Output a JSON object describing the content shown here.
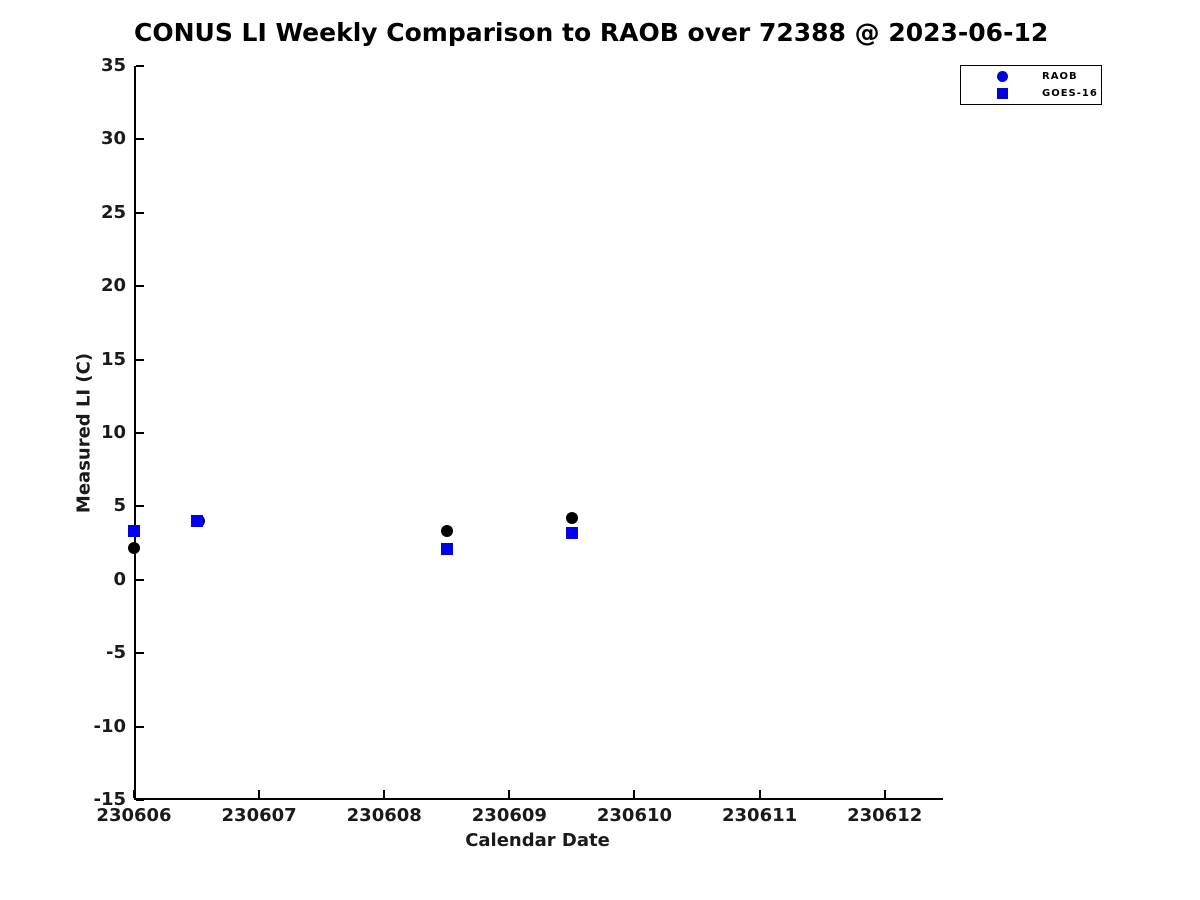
{
  "chart_data": {
    "type": "scatter",
    "title": "CONUS LI Weekly Comparison to RAOB over 72388 @ 2023-06-12",
    "xlabel": "Calendar Date",
    "ylabel": "Measured LI (C)",
    "xlim": [
      230606,
      230612.45
    ],
    "ylim": [
      -15,
      35
    ],
    "x_ticks": [
      230606,
      230607,
      230608,
      230609,
      230610,
      230611,
      230612
    ],
    "y_ticks": [
      -15,
      -10,
      -5,
      0,
      5,
      10,
      15,
      20,
      25,
      30,
      35
    ],
    "grid": false,
    "legend": {
      "position": "top-right",
      "entries": [
        {
          "label": "RAOB",
          "marker": "circle",
          "color": "#0000dd"
        },
        {
          "label": "GOES-16",
          "marker": "square",
          "color": "#0000dd"
        }
      ]
    },
    "series": [
      {
        "name": "RAOB",
        "marker": "circle",
        "color": "#000000",
        "points": [
          {
            "x": 230606.0,
            "y": 2.2
          },
          {
            "x": 230606.52,
            "y": 4.0
          },
          {
            "x": 230608.5,
            "y": 3.3
          },
          {
            "x": 230609.5,
            "y": 4.2
          }
        ]
      },
      {
        "name": "GOES-16",
        "marker": "square",
        "color": "#0000ee",
        "points": [
          {
            "x": 230606.0,
            "y": 3.3
          },
          {
            "x": 230606.5,
            "y": 4.0
          },
          {
            "x": 230608.5,
            "y": 2.1
          },
          {
            "x": 230609.5,
            "y": 3.2
          }
        ]
      }
    ]
  },
  "styles": {
    "background": "#ffffff",
    "axis_color": "#000000",
    "text_color": "#1a1a1a",
    "legend_border_color": "#000000"
  }
}
